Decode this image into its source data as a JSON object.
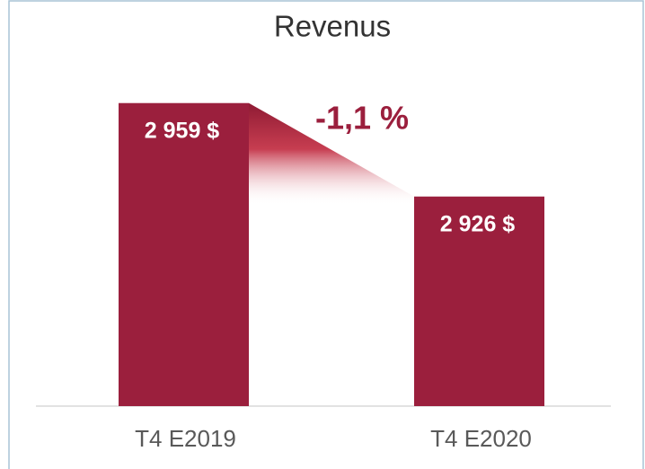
{
  "chart_data": {
    "type": "bar",
    "title": "Revenus",
    "categories": [
      "T4 E2019",
      "T4 E2020"
    ],
    "values": [
      2959,
      2926
    ],
    "value_labels": [
      "2 959 $",
      "2 926 $"
    ],
    "color": "#9b1f3d",
    "ylim": [
      2852,
      2990
    ],
    "annotation": "-1,1 %"
  }
}
